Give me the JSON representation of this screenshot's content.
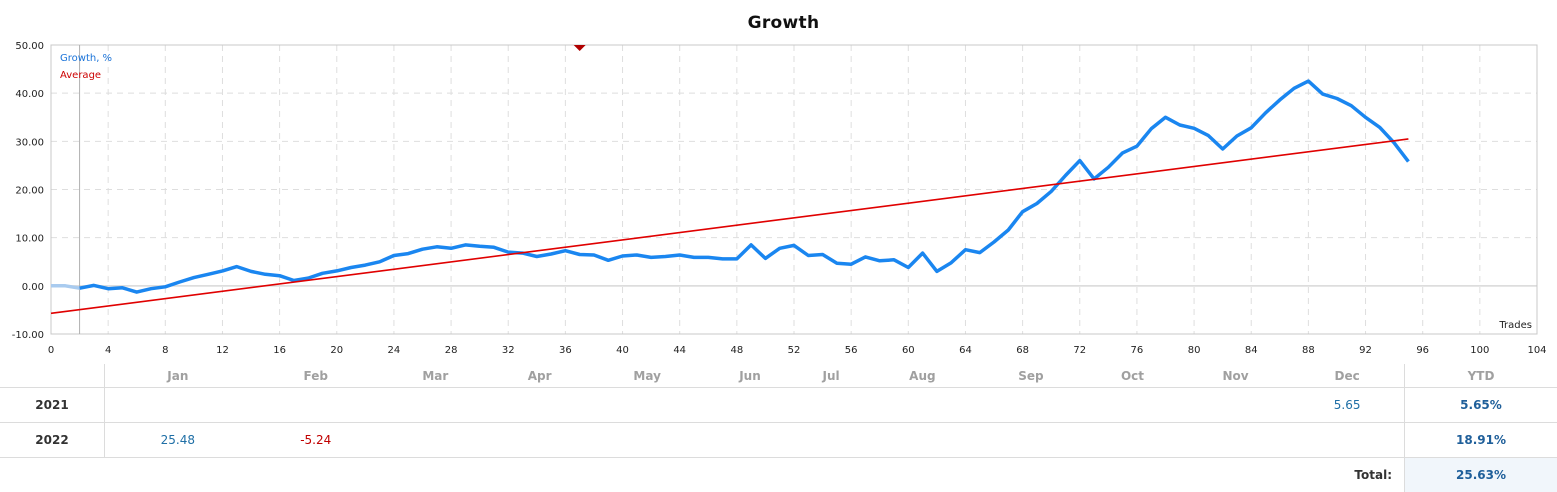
{
  "chart_data": {
    "type": "line",
    "title": "Growth",
    "xlabel": "Trades",
    "ylabel": "",
    "xlim": [
      0,
      104
    ],
    "ylim": [
      -10,
      50
    ],
    "x_ticks": [
      0,
      4,
      8,
      12,
      16,
      20,
      24,
      28,
      32,
      36,
      40,
      44,
      48,
      52,
      56,
      60,
      64,
      68,
      72,
      76,
      80,
      84,
      88,
      92,
      96,
      100,
      104
    ],
    "y_ticks": [
      "-10.00",
      "0.00",
      "10.00",
      "20.00",
      "30.00",
      "40.00",
      "50.00"
    ],
    "grid": true,
    "legend_position": "top-left",
    "series": [
      {
        "name": "Growth, %",
        "color": "#1a86f0",
        "x": [
          0,
          1,
          2,
          3,
          4,
          5,
          6,
          7,
          8,
          9,
          10,
          11,
          12,
          13,
          14,
          15,
          16,
          17,
          18,
          19,
          20,
          21,
          22,
          23,
          24,
          25,
          26,
          27,
          28,
          29,
          30,
          31,
          32,
          33,
          34,
          35,
          36,
          37,
          38,
          39,
          40,
          41,
          42,
          43,
          44,
          45,
          46,
          47,
          48,
          49,
          50,
          51,
          52,
          53,
          54,
          55,
          56,
          57,
          58,
          59,
          60,
          61,
          62,
          63,
          64,
          65,
          66,
          67,
          68,
          69,
          70,
          71,
          72,
          73,
          74,
          75,
          76,
          77,
          78,
          79,
          80,
          81,
          82,
          83,
          84,
          85,
          86,
          87,
          88,
          89,
          90,
          91,
          92,
          93,
          94,
          95
        ],
        "values": [
          0.0,
          0.0,
          -0.5,
          0.1,
          -0.6,
          -0.4,
          -1.3,
          -0.6,
          -0.2,
          0.8,
          1.7,
          2.4,
          3.1,
          4.0,
          3.0,
          2.4,
          2.1,
          1.1,
          1.6,
          2.6,
          3.1,
          3.8,
          4.3,
          5.0,
          6.3,
          6.7,
          7.6,
          8.1,
          7.8,
          8.5,
          8.2,
          8.0,
          7.0,
          6.8,
          6.1,
          6.6,
          7.3,
          6.5,
          6.4,
          5.3,
          6.2,
          6.4,
          5.9,
          6.1,
          6.4,
          5.9,
          5.9,
          5.6,
          5.6,
          8.5,
          5.7,
          7.8,
          8.4,
          6.3,
          6.5,
          4.7,
          4.5,
          6.0,
          5.2,
          5.4,
          3.8,
          6.8,
          3.0,
          4.8,
          7.5,
          6.9,
          9.1,
          11.6,
          15.4,
          17.1,
          19.6,
          22.9,
          26.0,
          22.2,
          24.6,
          27.6,
          29.0,
          32.6,
          35.0,
          33.4,
          32.7,
          31.2,
          28.4,
          31.1,
          32.8,
          35.9,
          38.6,
          41.0,
          42.5,
          39.8,
          38.9,
          37.4,
          35.0,
          32.9,
          29.7,
          25.8
        ],
        "pre_period_until_x": 2,
        "pre_period_color": "#a9cbef"
      },
      {
        "name": "Average",
        "color": "#e00000",
        "x": [
          0,
          95
        ],
        "values": [
          -5.7,
          30.5
        ]
      }
    ],
    "annotations": [
      {
        "type": "vertical-marker-line",
        "x": 2,
        "color": "#b0b0b0"
      },
      {
        "type": "top-triangle-marker",
        "x": 37,
        "color": "#b00000"
      }
    ]
  },
  "chart": {
    "title": "Growth",
    "legend": {
      "growth": "Growth, %",
      "average": "Average"
    },
    "x_axis_label": "Trades"
  },
  "monthly_table": {
    "headers": [
      "",
      "Jan",
      "Feb",
      "Mar",
      "Apr",
      "May",
      "Jun",
      "Jul",
      "Aug",
      "Sep",
      "Oct",
      "Nov",
      "Dec",
      "YTD"
    ],
    "rows": [
      {
        "year": "2021",
        "months": [
          "",
          "",
          "",
          "",
          "",
          "",
          "",
          "",
          "",
          "",
          "",
          "5.65"
        ],
        "ytd": "5.65%"
      },
      {
        "year": "2022",
        "months": [
          "25.48",
          "-5.24",
          "",
          "",
          "",
          "",
          "",
          "",
          "",
          "",
          "",
          ""
        ],
        "ytd": "18.91%"
      }
    ],
    "total_label": "Total:",
    "total_value": "25.63%"
  }
}
